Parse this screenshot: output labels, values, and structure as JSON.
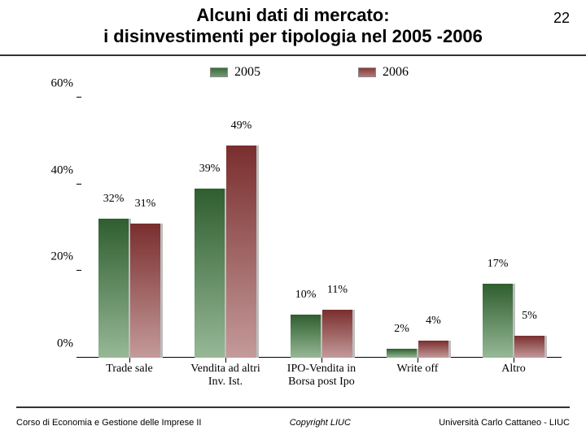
{
  "page_number": "22",
  "title_line1": "Alcuni dati di mercato:",
  "title_line2": "i disinvestimenti per tipologia nel 2005 -2006",
  "footer": {
    "left": "Corso di Economia e Gestione delle Imprese II",
    "mid": "Copyright LIUC",
    "right": "Università Carlo Cattaneo - LIUC"
  },
  "legend": {
    "series": [
      {
        "label": "2005",
        "color_top": "#3c6b3c",
        "color_bot": "#6f9b6f"
      },
      {
        "label": "2006",
        "color_top": "#8a3b3b",
        "color_bot": "#b07878"
      }
    ]
  },
  "chart": {
    "type": "bar",
    "ylim_max": 60,
    "yticks": [
      {
        "v": 0,
        "label": "0%"
      },
      {
        "v": 20,
        "label": "20%"
      },
      {
        "v": 40,
        "label": "40%"
      },
      {
        "v": 60,
        "label": "60%"
      }
    ],
    "bar_colors": {
      "s0_top": "#2f5e2f",
      "s0_bot": "#96b896",
      "s1_top": "#7a2e2e",
      "s1_bot": "#c49a9a",
      "shadow": "#bdbdbd"
    },
    "group_width_pct": 18,
    "bar_width_pct": 6.2,
    "gap_between_bars_pct": 0.4,
    "categories": [
      {
        "label": "Trade sale",
        "v2005": 32,
        "v2006": 31,
        "l2005": "32%",
        "l2006": "31%"
      },
      {
        "label": "Vendita ad altri\nInv. Ist.",
        "v2005": 39,
        "v2006": 49,
        "l2005": "39%",
        "l2006": "49%"
      },
      {
        "label": "IPO-Vendita in\nBorsa post Ipo",
        "v2005": 10,
        "v2006": 11,
        "l2005": "10%",
        "l2006": "11%"
      },
      {
        "label": "Write off",
        "v2005": 2,
        "v2006": 4,
        "l2005": "2%",
        "l2006": "4%"
      },
      {
        "label": "Altro",
        "v2005": 17,
        "v2006": 5,
        "l2005": "17%",
        "l2006": "5%"
      }
    ]
  }
}
